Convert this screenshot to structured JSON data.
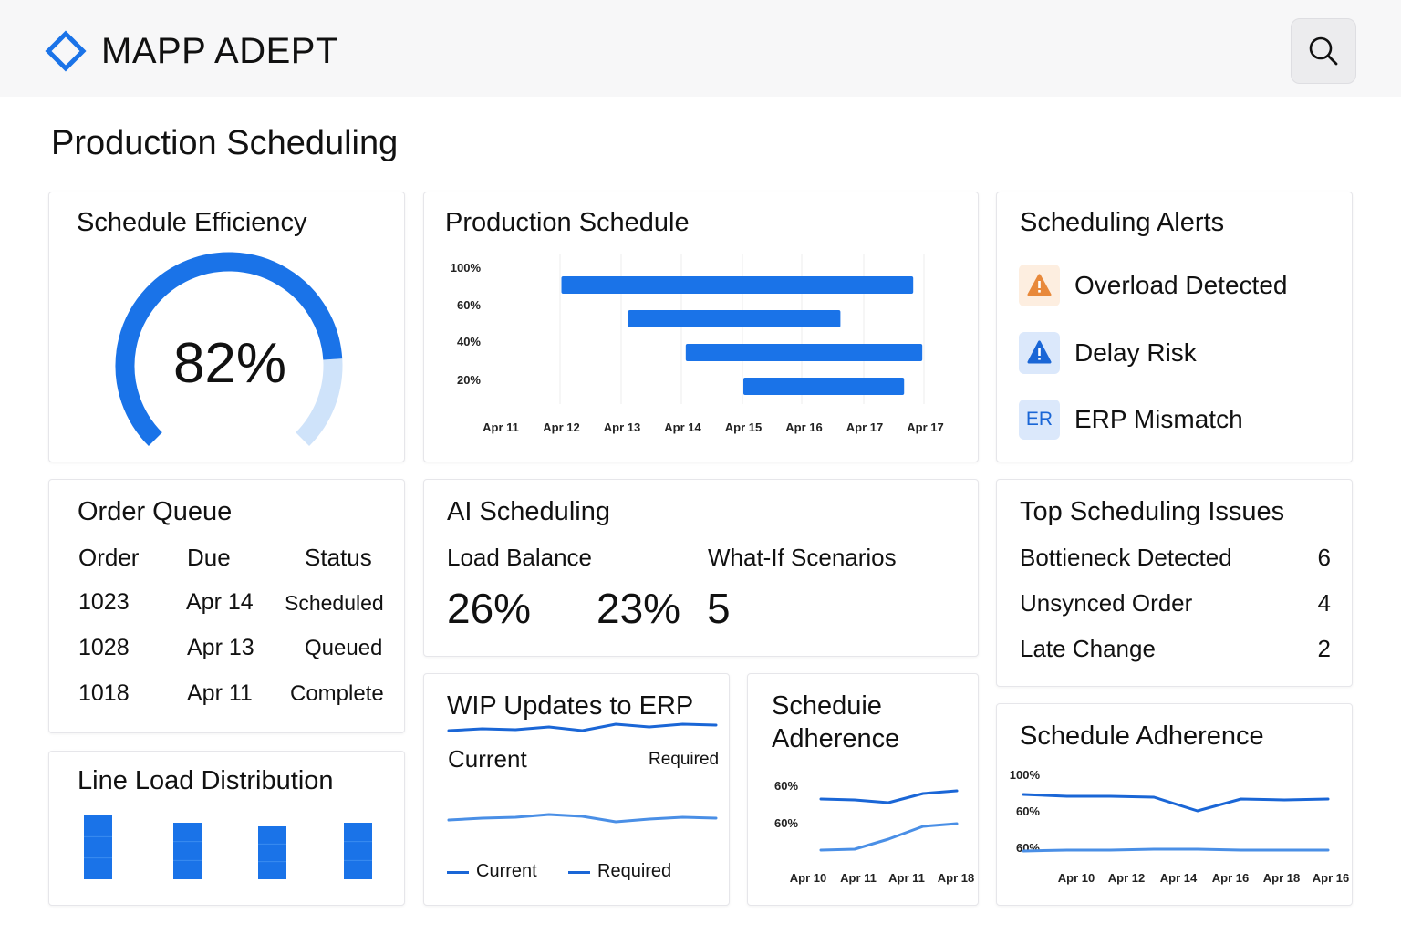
{
  "app": {
    "brand": "MAPP ADEPT"
  },
  "page": {
    "title": "Production Scheduling"
  },
  "efficiency": {
    "title": "Schedule Efficiency",
    "value_label": "82%",
    "value": 0.82
  },
  "production_schedule": {
    "title": "Production Schedule",
    "y_ticks": [
      "100%",
      "60%",
      "40%",
      "20%"
    ],
    "x_ticks": [
      "Apr 11",
      "Apr 12",
      "Apr 13",
      "Apr 14",
      "Apr 15",
      "Apr 16",
      "Apr 17",
      "Apr 17"
    ],
    "bars": [
      {
        "start": 1.0,
        "end": 6.8
      },
      {
        "start": 2.1,
        "end": 5.6
      },
      {
        "start": 3.05,
        "end": 6.95
      },
      {
        "start": 4.0,
        "end": 6.65
      }
    ]
  },
  "alerts": {
    "title": "Scheduling Alerts",
    "items": [
      {
        "label": "Overload Detected",
        "icon": "warning-triangle-icon",
        "color": "#e8893b"
      },
      {
        "label": "Delay Risk",
        "icon": "alert-triangle-icon",
        "color": "#1a66d6"
      },
      {
        "label": "ERP Mismatch",
        "icon": "erp-badge-icon",
        "badge": "ER",
        "color": "#1a66d6"
      }
    ]
  },
  "order_queue": {
    "title": "Order Queue",
    "columns": [
      "Order",
      "Due",
      "Status"
    ],
    "rows": [
      [
        "1023",
        "Apr 14",
        "Scheduled"
      ],
      [
        "1028",
        "Apr 13",
        "Queued"
      ],
      [
        "1018",
        "Apr 11",
        "Complete"
      ]
    ]
  },
  "ai_scheduling": {
    "title": "AI Scheduling",
    "label_load": "Load Balance",
    "label_whatif": "What-If Scenarios",
    "val1": "26%",
    "val2": "23%",
    "val3": "5"
  },
  "top_issues": {
    "title": "Top Scheduling Issues",
    "items": [
      {
        "label": "Bottieneck Detected",
        "count": "6"
      },
      {
        "label": "Unsynced Order",
        "count": "4"
      },
      {
        "label": "Late Change",
        "count": "2"
      }
    ]
  },
  "line_load": {
    "title": "Line Load Distribution",
    "values": [
      70,
      62,
      58,
      62
    ]
  },
  "wip": {
    "title": "WIP Updates to ERP",
    "header_current": "Current",
    "header_required": "Required",
    "legend_current": "Current",
    "legend_required": "Required",
    "current": [
      70,
      72,
      71,
      74,
      70,
      77,
      74,
      77,
      76
    ],
    "required": [
      38,
      40,
      41,
      44,
      42,
      36,
      39,
      41,
      40
    ]
  },
  "adherence_small": {
    "title_line1": "Scheduie",
    "title_line2": "Adherence",
    "y_ticks": [
      "60%",
      "60%"
    ],
    "x_ticks": [
      "Apr 10",
      "Apr 11",
      "Apr 11",
      "Apr 18"
    ],
    "series_a": [
      80,
      79,
      76,
      86,
      89
    ],
    "series_b": [
      28,
      29,
      40,
      54,
      57
    ]
  },
  "adherence_large": {
    "title": "Schedule Adherence",
    "y_ticks": [
      "100%",
      "60%",
      "60%"
    ],
    "x_ticks": [
      "Apr 10",
      "Apr 12",
      "Apr 14",
      "Apr 16",
      "Apr 18",
      "Apr 16"
    ],
    "series_a": [
      80,
      78,
      78,
      77,
      62,
      75,
      74,
      75
    ],
    "series_b": [
      12,
      13,
      13,
      14,
      14,
      13,
      13,
      13
    ]
  },
  "colors": {
    "accent": "#1a73e8",
    "accent_light": "#cfe3fa",
    "line_light": "#4a8fe6"
  }
}
